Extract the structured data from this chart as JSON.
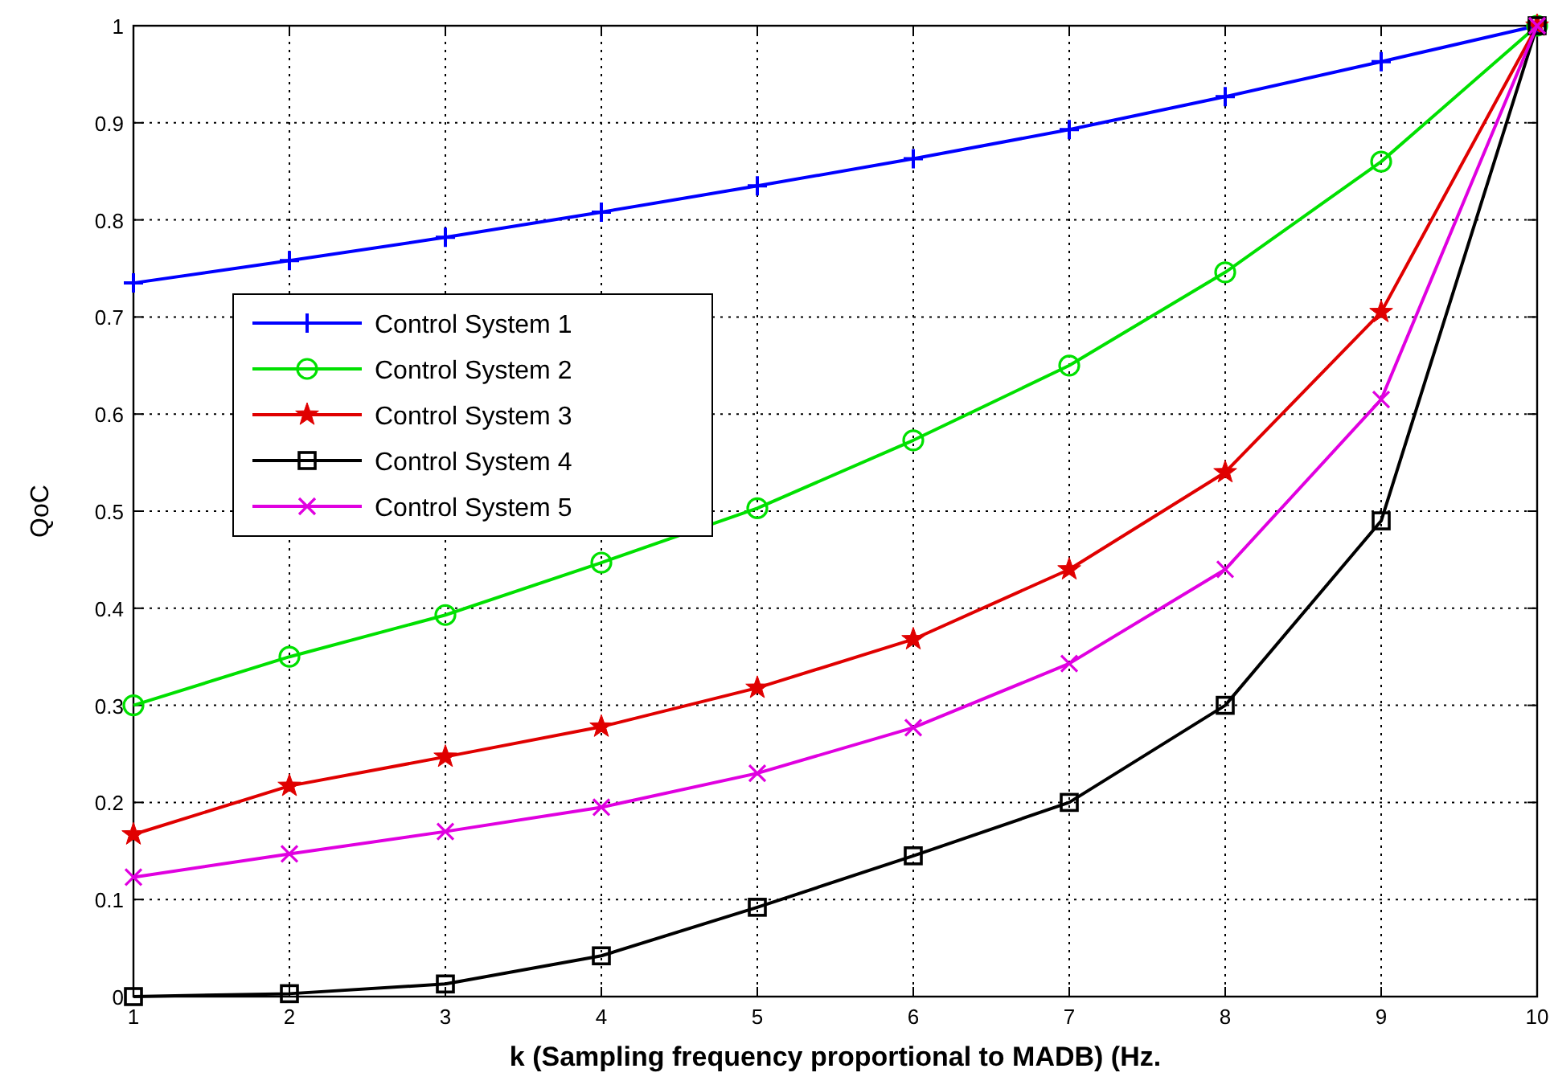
{
  "chart_data": {
    "type": "line",
    "xlabel": "k (Sampling frequency proportional to MADB) (Hz.",
    "ylabel": "QoC",
    "x": [
      1,
      2,
      3,
      4,
      5,
      6,
      7,
      8,
      9,
      10
    ],
    "xlim": [
      1,
      10
    ],
    "xticks": [
      1,
      2,
      3,
      4,
      5,
      6,
      7,
      8,
      9,
      10
    ],
    "ylim": [
      0,
      1
    ],
    "yticks": [
      0,
      0.1,
      0.2,
      0.3,
      0.4,
      0.5,
      0.6,
      0.7,
      0.8,
      0.9,
      1
    ],
    "grid": true,
    "legend": "left",
    "line_style": "solid",
    "series": [
      {
        "name": "Control System 1",
        "color": "#0000ff",
        "marker": "cross",
        "values": [
          0.735,
          0.758,
          0.782,
          0.808,
          0.835,
          0.863,
          0.893,
          0.927,
          0.963,
          1
        ]
      },
      {
        "name": "Control System 2",
        "color": "#00e000",
        "marker": "circle",
        "values": [
          0.3,
          0.35,
          0.393,
          0.447,
          0.503,
          0.573,
          0.65,
          0.746,
          0.86,
          1
        ]
      },
      {
        "name": "Control System 3",
        "color": "#e00000",
        "marker": "star",
        "values": [
          0.167,
          0.217,
          0.247,
          0.278,
          0.318,
          0.368,
          0.44,
          0.54,
          0.705,
          1
        ]
      },
      {
        "name": "Control System 4",
        "color": "#000000",
        "marker": "square",
        "values": [
          0,
          0.003,
          0.013,
          0.042,
          0.092,
          0.145,
          0.2,
          0.3,
          0.49,
          1
        ]
      },
      {
        "name": "Control System 5",
        "color": "#e000e0",
        "marker": "x",
        "values": [
          0.123,
          0.147,
          0.17,
          0.195,
          0.23,
          0.277,
          0.343,
          0.44,
          0.615,
          1
        ]
      }
    ]
  }
}
